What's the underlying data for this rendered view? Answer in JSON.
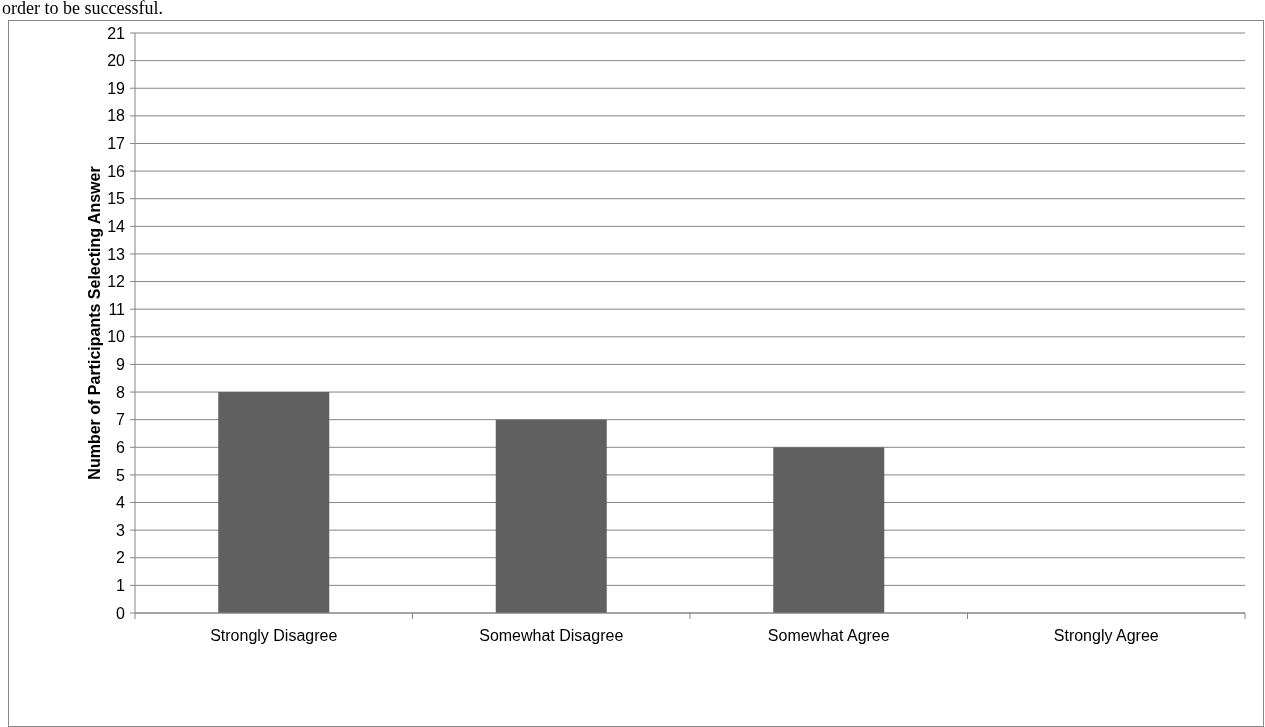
{
  "chart_data": {
    "type": "bar",
    "ylabel": "Number of Participants Selecting Answer",
    "annotations": [
      "order to be successful."
    ],
    "categories": [
      "Strongly Disagree",
      "Somewhat Disagree",
      "Somewhat Agree",
      "Strongly Agree"
    ],
    "values": [
      8,
      7,
      6,
      0
    ],
    "color": "#606060",
    "ylim": [
      0,
      21
    ],
    "yticks": [
      0,
      1,
      2,
      3,
      4,
      5,
      6,
      7,
      8,
      9,
      10,
      11,
      12,
      13,
      14,
      15,
      16,
      17,
      18,
      19,
      20,
      21
    ],
    "grid": "y"
  }
}
